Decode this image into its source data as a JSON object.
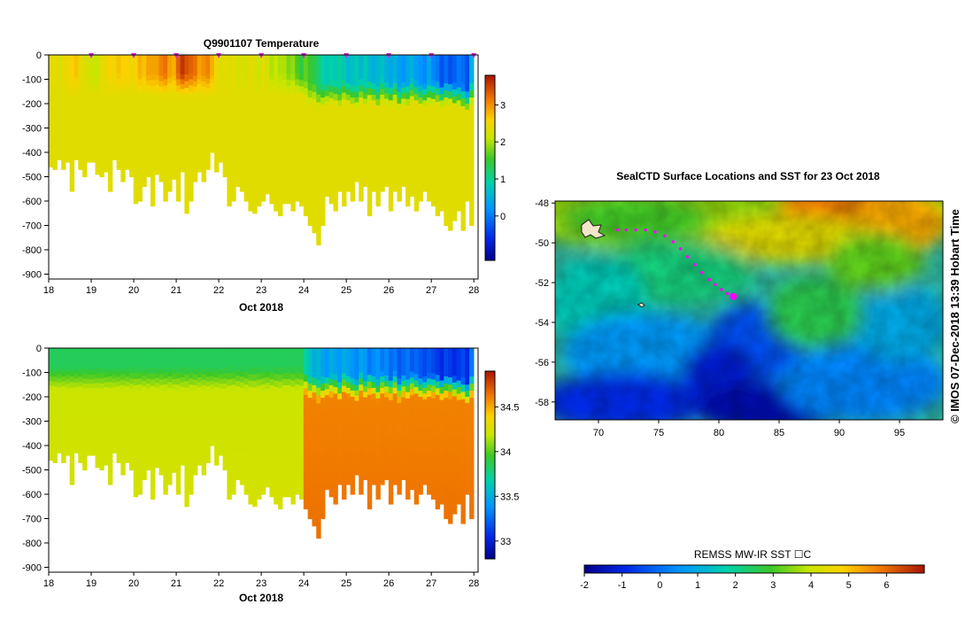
{
  "ui": {
    "credit": "© IMOS 07-Dec-2018 13:39 Hobart Time"
  },
  "chart_data": [
    {
      "id": "temperature",
      "type": "heatmap",
      "title": "Q9901107  Temperature",
      "xlabel": "Oct 2018",
      "ylabel": "",
      "x_ticks": [
        "18",
        "19",
        "20",
        "21",
        "22",
        "23",
        "24",
        "25",
        "26",
        "27",
        "28"
      ],
      "xlim": [
        18,
        28.1
      ],
      "y_ticks": [
        "0",
        "-100",
        "-200",
        "-300",
        "-400",
        "-500",
        "-600",
        "-700",
        "-800",
        "-900"
      ],
      "ylim": [
        -920,
        0
      ],
      "colorbar": {
        "ticks": [
          "0",
          "1",
          "2",
          "3"
        ],
        "range": [
          -1.2,
          3.8
        ]
      },
      "profile_days": [
        18.05,
        18.15,
        18.25,
        18.35,
        18.45,
        18.55,
        18.65,
        18.75,
        18.85,
        18.95,
        19.05,
        19.15,
        19.25,
        19.35,
        19.45,
        19.55,
        19.65,
        19.75,
        19.85,
        19.95,
        20.05,
        20.15,
        20.25,
        20.35,
        20.45,
        20.55,
        20.65,
        20.75,
        20.85,
        20.95,
        21.05,
        21.15,
        21.25,
        21.35,
        21.45,
        21.55,
        21.65,
        21.75,
        21.85,
        21.95,
        22.05,
        22.15,
        22.25,
        22.35,
        22.45,
        22.55,
        22.65,
        22.75,
        22.85,
        22.95,
        23.05,
        23.15,
        23.25,
        23.35,
        23.45,
        23.55,
        23.65,
        23.75,
        23.85,
        23.95,
        24.05,
        24.15,
        24.25,
        24.35,
        24.45,
        24.55,
        24.65,
        24.75,
        24.85,
        24.95,
        25.05,
        25.15,
        25.25,
        25.35,
        25.45,
        25.55,
        25.65,
        25.75,
        25.85,
        25.95,
        26.05,
        26.15,
        26.25,
        26.35,
        26.45,
        26.55,
        26.65,
        26.75,
        26.85,
        26.95,
        27.05,
        27.15,
        27.25,
        27.35,
        27.45,
        27.55,
        27.65,
        27.75,
        27.85,
        27.95
      ],
      "max_depth_m": [
        460,
        470,
        430,
        470,
        440,
        560,
        430,
        470,
        500,
        440,
        440,
        490,
        500,
        480,
        560,
        430,
        470,
        520,
        470,
        500,
        610,
        600,
        540,
        500,
        620,
        490,
        520,
        600,
        560,
        510,
        600,
        480,
        650,
        600,
        520,
        480,
        520,
        470,
        400,
        480,
        440,
        500,
        620,
        600,
        540,
        560,
        600,
        640,
        650,
        620,
        600,
        570,
        610,
        640,
        660,
        610,
        610,
        640,
        600,
        620,
        660,
        700,
        730,
        780,
        700,
        580,
        610,
        640,
        560,
        620,
        560,
        600,
        520,
        600,
        540,
        660,
        560,
        620,
        560,
        540,
        640,
        560,
        600,
        540,
        620,
        580,
        640,
        600,
        560,
        600,
        620,
        660,
        640,
        700,
        720,
        680,
        640,
        720,
        600,
        700
      ],
      "mixed_layer_depth_m": [
        80,
        80,
        80,
        80,
        80,
        80,
        80,
        80,
        80,
        80,
        80,
        80,
        80,
        80,
        80,
        80,
        80,
        80,
        80,
        80,
        80,
        80,
        80,
        80,
        80,
        80,
        80,
        80,
        80,
        80,
        80,
        80,
        80,
        80,
        80,
        80,
        80,
        80,
        80,
        80,
        80,
        80,
        80,
        80,
        80,
        80,
        80,
        80,
        80,
        80,
        80,
        80,
        80,
        80,
        80,
        80,
        80,
        80,
        80,
        80,
        100,
        120,
        110,
        130,
        120,
        110,
        110,
        110,
        130,
        100,
        110,
        120,
        130,
        100,
        120,
        100,
        110,
        130,
        100,
        110,
        120,
        100,
        130,
        110,
        120,
        100,
        110,
        120,
        120,
        110,
        110,
        110,
        120,
        110,
        110,
        120,
        120,
        130,
        140,
        110
      ],
      "surface_temperature_c": [
        2.4,
        2.4,
        2.3,
        2.4,
        2.5,
        2.6,
        2.7,
        2.4,
        2.3,
        2.2,
        2.1,
        2.1,
        2.4,
        2.4,
        2.6,
        2.5,
        2.7,
        2.6,
        2.6,
        2.5,
        2.6,
        2.8,
        2.7,
        2.9,
        2.9,
        2.9,
        3.1,
        3.2,
        2.9,
        2.8,
        3.3,
        3.6,
        3.4,
        3.3,
        3.2,
        2.9,
        3.0,
        3.1,
        2.8,
        2.5,
        2.3,
        2.4,
        2.3,
        2.4,
        2.2,
        2.3,
        2.2,
        2.4,
        2.3,
        2.1,
        2.4,
        2.2,
        2.0,
        2.1,
        2.0,
        2.0,
        1.8,
        1.9,
        1.6,
        1.4,
        1.7,
        1.5,
        1.4,
        1.2,
        0.9,
        0.8,
        0.9,
        0.8,
        1.0,
        0.8,
        0.6,
        0.7,
        0.8,
        0.6,
        0.8,
        0.6,
        0.5,
        0.6,
        0.7,
        0.5,
        0.4,
        0.5,
        0.3,
        0.2,
        0.4,
        0.5,
        0.3,
        0.2,
        0.1,
        0.4,
        0.1,
        0.0,
        -0.3,
        -0.1,
        -0.3,
        -0.2,
        0.0,
        -0.1,
        -0.3,
        0.5
      ],
      "deep_temperature_c": [
        2.35,
        2.35,
        2.35,
        2.35,
        2.35,
        2.35,
        2.35,
        2.35,
        2.35,
        2.35,
        2.35,
        2.35,
        2.35,
        2.35,
        2.35,
        2.35,
        2.35,
        2.35,
        2.35,
        2.35,
        2.35,
        2.35,
        2.35,
        2.35,
        2.35,
        2.35,
        2.35,
        2.35,
        2.35,
        2.35,
        2.35,
        2.35,
        2.35,
        2.35,
        2.35,
        2.35,
        2.35,
        2.35,
        2.35,
        2.35,
        2.35,
        2.35,
        2.35,
        2.35,
        2.35,
        2.35,
        2.35,
        2.35,
        2.35,
        2.35,
        2.35,
        2.35,
        2.35,
        2.35,
        2.35,
        2.35,
        2.35,
        2.35,
        2.35,
        2.35,
        2.35,
        2.35,
        2.35,
        2.35,
        2.35,
        2.35,
        2.35,
        2.35,
        2.35,
        2.35,
        2.35,
        2.35,
        2.35,
        2.35,
        2.35,
        2.35,
        2.35,
        2.35,
        2.35,
        2.35,
        2.35,
        2.35,
        2.35,
        2.35,
        2.35,
        2.35,
        2.35,
        2.35,
        2.35,
        2.35,
        2.35,
        2.35,
        2.35,
        2.35,
        2.35,
        2.35,
        2.35,
        2.35,
        2.35,
        2.35
      ],
      "surface_markers_days": [
        19,
        20,
        21,
        22,
        23,
        24,
        25,
        26,
        27,
        28
      ]
    },
    {
      "id": "salinity",
      "type": "heatmap",
      "title": "",
      "xlabel": "Oct 2018",
      "ylabel": "",
      "x_ticks": [
        "18",
        "19",
        "20",
        "21",
        "22",
        "23",
        "24",
        "25",
        "26",
        "27",
        "28"
      ],
      "xlim": [
        18,
        28.1
      ],
      "y_ticks": [
        "0",
        "-100",
        "-200",
        "-300",
        "-400",
        "-500",
        "-600",
        "-700",
        "-800",
        "-900"
      ],
      "ylim": [
        -920,
        0
      ],
      "colorbar": {
        "ticks": [
          "33",
          "33.5",
          "34",
          "34.5"
        ],
        "range": [
          32.8,
          34.9
        ]
      },
      "surface_salinity_psu": [
        33.85,
        33.85,
        33.85,
        33.85,
        33.85,
        33.85,
        33.85,
        33.85,
        33.85,
        33.85,
        33.85,
        33.85,
        33.85,
        33.85,
        33.85,
        33.85,
        33.85,
        33.85,
        33.85,
        33.85,
        33.85,
        33.85,
        33.85,
        33.85,
        33.85,
        33.85,
        33.85,
        33.85,
        33.85,
        33.85,
        33.85,
        33.85,
        33.85,
        33.85,
        33.85,
        33.85,
        33.85,
        33.85,
        33.85,
        33.85,
        33.85,
        33.85,
        33.85,
        33.85,
        33.85,
        33.85,
        33.85,
        33.85,
        33.85,
        33.85,
        33.85,
        33.85,
        33.85,
        33.85,
        33.85,
        33.85,
        33.85,
        33.85,
        33.85,
        33.85,
        33.7,
        33.6,
        33.5,
        33.55,
        33.45,
        33.4,
        33.5,
        33.45,
        33.4,
        33.5,
        33.45,
        33.4,
        33.35,
        33.45,
        33.4,
        33.3,
        33.35,
        33.4,
        33.3,
        33.35,
        33.25,
        33.3,
        33.2,
        33.25,
        33.3,
        33.2,
        33.25,
        33.2,
        33.15,
        33.2,
        33.15,
        33.1,
        33.05,
        33.15,
        33.1,
        33.05,
        33.1,
        33.15,
        33.05,
        33.3
      ],
      "deep_salinity_psu": [
        34.2,
        34.2,
        34.2,
        34.2,
        34.2,
        34.2,
        34.2,
        34.2,
        34.2,
        34.2,
        34.2,
        34.2,
        34.2,
        34.2,
        34.2,
        34.2,
        34.2,
        34.2,
        34.2,
        34.2,
        34.2,
        34.2,
        34.2,
        34.2,
        34.2,
        34.2,
        34.2,
        34.2,
        34.2,
        34.2,
        34.2,
        34.2,
        34.2,
        34.2,
        34.2,
        34.2,
        34.2,
        34.2,
        34.2,
        34.2,
        34.2,
        34.2,
        34.2,
        34.2,
        34.2,
        34.2,
        34.2,
        34.2,
        34.2,
        34.2,
        34.2,
        34.2,
        34.2,
        34.2,
        34.2,
        34.2,
        34.2,
        34.2,
        34.2,
        34.2,
        34.6,
        34.6,
        34.6,
        34.6,
        34.6,
        34.6,
        34.6,
        34.6,
        34.6,
        34.6,
        34.6,
        34.6,
        34.6,
        34.6,
        34.6,
        34.6,
        34.6,
        34.6,
        34.6,
        34.6,
        34.6,
        34.6,
        34.6,
        34.6,
        34.6,
        34.6,
        34.6,
        34.6,
        34.6,
        34.6,
        34.6,
        34.6,
        34.6,
        34.6,
        34.6,
        34.6,
        34.6,
        34.6,
        34.6,
        34.6
      ]
    },
    {
      "id": "sst_map",
      "type": "heatmap",
      "title": "SealCTD Surface Locations and SST for 23 Oct 2018",
      "xlabel": "",
      "ylabel": "",
      "x_ticks": [
        "70",
        "75",
        "80",
        "85",
        "90",
        "95"
      ],
      "xlim": [
        66.4,
        98.6
      ],
      "y_ticks": [
        "-48",
        "-50",
        "-52",
        "-54",
        "-56",
        "-58"
      ],
      "ylim": [
        -58.9,
        -47.9
      ],
      "colorbar": {
        "label": "REMSS MW-IR SST ☐C",
        "ticks": [
          "-2",
          "-1",
          "0",
          "1",
          "2",
          "3",
          "4",
          "5",
          "6"
        ],
        "range": [
          -2,
          7
        ]
      },
      "track_lon": [
        71.6,
        72.3,
        73.1,
        73.9,
        74.7,
        75.5,
        76.2,
        76.8,
        77.4,
        78.0,
        78.6,
        79.2,
        79.7,
        80.2,
        80.7,
        81.2
      ],
      "track_lat": [
        -49.35,
        -49.35,
        -49.35,
        -49.35,
        -49.45,
        -49.65,
        -49.95,
        -50.3,
        -50.7,
        -51.1,
        -51.5,
        -51.85,
        -52.1,
        -52.35,
        -52.55,
        -52.7
      ],
      "current_position": {
        "lon": 81.2,
        "lat": -52.7
      }
    }
  ]
}
